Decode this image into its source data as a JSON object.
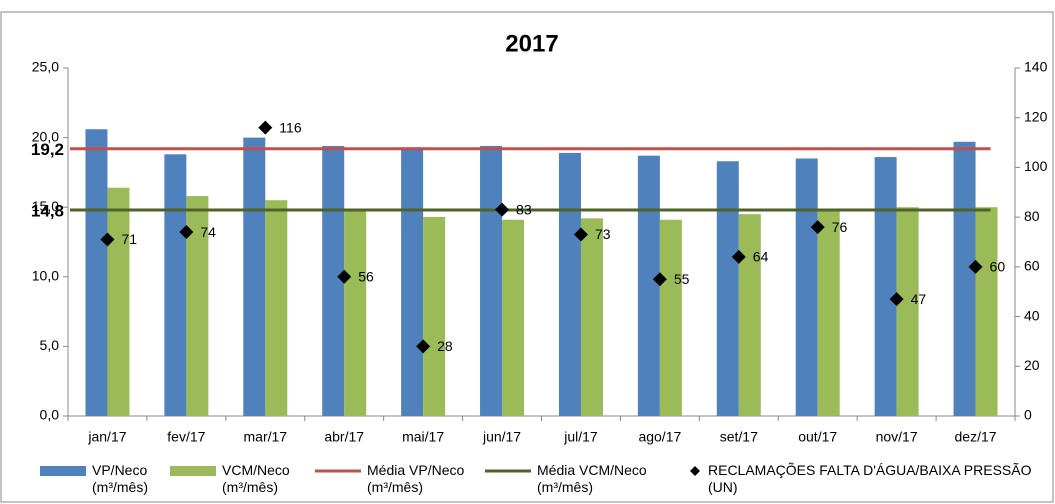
{
  "chart_data": {
    "type": "bar",
    "title": "2017",
    "categories": [
      "jan/17",
      "fev/17",
      "mar/17",
      "abr/17",
      "mai/17",
      "jun/17",
      "jul/17",
      "ago/17",
      "set/17",
      "out/17",
      "nov/17",
      "dez/17"
    ],
    "series": [
      {
        "name": "VP/Neco (m³/mês)",
        "type": "bar",
        "color": "#4f81bd",
        "values": [
          20.6,
          18.8,
          20.0,
          19.4,
          19.3,
          19.4,
          18.9,
          18.7,
          18.3,
          18.5,
          18.6,
          19.7
        ]
      },
      {
        "name": "VCM/Neco (m³/mês)",
        "type": "bar",
        "color": "#9bbb59",
        "values": [
          16.4,
          15.8,
          15.5,
          14.9,
          14.3,
          14.1,
          14.2,
          14.1,
          14.5,
          14.9,
          15.0,
          15.0
        ]
      },
      {
        "name": "Média VP/Neco (m³/mês)",
        "type": "hline",
        "color": "#c0504d",
        "label_color": "#632523",
        "value": 19.2,
        "label": "19,2"
      },
      {
        "name": "Média VCM/Neco (m³/mês)",
        "type": "hline",
        "color": "#4f6228",
        "label_color": "#4f6228",
        "value": 14.8,
        "label": "14,8"
      },
      {
        "name": "RECLAMAÇÕES FALTA D'ÁGUA/BAIXA PRESSÃO (UN)",
        "type": "scatter",
        "axis": "y2",
        "color": "#000000",
        "values": [
          71,
          74,
          116,
          56,
          28,
          83,
          73,
          55,
          64,
          76,
          47,
          60
        ]
      }
    ],
    "ylim": [
      0,
      25
    ],
    "yticks": [
      {
        "value": 0,
        "label": "0,0"
      },
      {
        "value": 5,
        "label": "5,0"
      },
      {
        "value": 10,
        "label": "10,0"
      },
      {
        "value": 15,
        "label": "15,0"
      },
      {
        "value": 20,
        "label": "20,0"
      },
      {
        "value": 25,
        "label": "25,0"
      }
    ],
    "y2lim": [
      0,
      140
    ],
    "y2ticks": [
      0,
      20,
      40,
      60,
      80,
      100,
      120,
      140
    ],
    "grid": false,
    "legend": "bottom"
  }
}
